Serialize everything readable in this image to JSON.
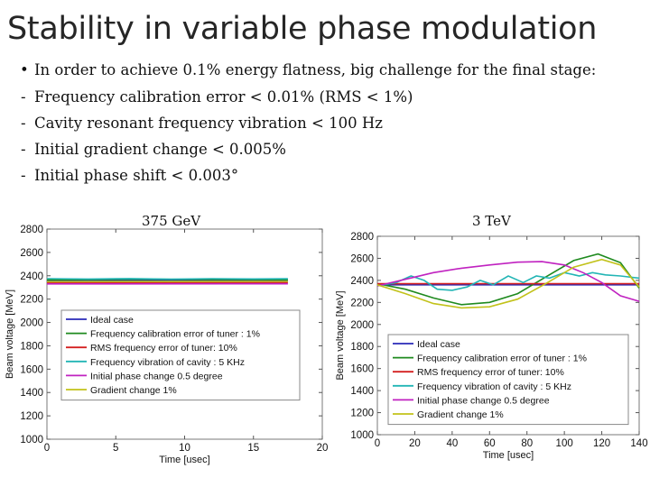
{
  "slide": {
    "title": "Stability in variable phase modulation",
    "bullet": "In order to achieve 0.1% energy flatness, big challenge for the final stage:",
    "items": [
      "Frequency calibration error < 0.01% (RMS < 1%)",
      "Cavity resonant frequency vibration < 100 Hz",
      "Initial gradient change < 0.005%",
      "Initial phase shift < 0.003°"
    ]
  },
  "legend_entries": [
    "Ideal case",
    "Frequency calibration error of tuner : 1%",
    "RMS frequency error of tuner: 10%",
    "Frequency vibration of cavity : 5 KHz",
    "Initial phase change 0.5 degree",
    "Gradient change 1%"
  ],
  "colors": [
    "#2a2ab8",
    "#1f8a1f",
    "#d42020",
    "#22b5b5",
    "#c022c0",
    "#c2c21a"
  ],
  "chart_data": [
    {
      "type": "line",
      "caption": "375 GeV",
      "xlabel": "Time [usec]",
      "ylabel": "Beam voltage [MeV]",
      "xlim": [
        0,
        20
      ],
      "ylim": [
        1000,
        2800
      ],
      "xticks": [
        0,
        5,
        10,
        15,
        20
      ],
      "yticks": [
        1000,
        1200,
        1400,
        1600,
        1800,
        2000,
        2200,
        2400,
        2600,
        2800
      ],
      "grid": false,
      "legend_position": "lower-left",
      "series": [
        {
          "name": "Ideal case",
          "x": [
            0,
            17.5
          ],
          "y": [
            2360,
            2360
          ]
        },
        {
          "name": "Frequency calibration error of tuner : 1%",
          "x": [
            0,
            4,
            8,
            12,
            17.5
          ],
          "y": [
            2365,
            2368,
            2370,
            2368,
            2366
          ]
        },
        {
          "name": "RMS frequency error of tuner: 10%",
          "x": [
            0,
            17.5
          ],
          "y": [
            2340,
            2342
          ]
        },
        {
          "name": "Frequency vibration of cavity : 5 KHz",
          "x": [
            0,
            3,
            6,
            9,
            12,
            15,
            17.5
          ],
          "y": [
            2375,
            2372,
            2376,
            2371,
            2375,
            2373,
            2374
          ]
        },
        {
          "name": "Initial phase change 0.5 degree",
          "x": [
            0,
            17.5
          ],
          "y": [
            2330,
            2331
          ]
        },
        {
          "name": "Gradient change 1%",
          "x": [
            0,
            17.5
          ],
          "y": [
            2350,
            2352
          ]
        }
      ]
    },
    {
      "type": "line",
      "caption": "3 TeV",
      "xlabel": "Time [usec]",
      "ylabel": "Beam voltage [MeV]",
      "xlim": [
        0,
        140
      ],
      "ylim": [
        1000,
        2800
      ],
      "xticks": [
        0,
        20,
        40,
        60,
        80,
        100,
        120,
        140
      ],
      "yticks": [
        1000,
        1200,
        1400,
        1600,
        1800,
        2000,
        2200,
        2400,
        2600,
        2800
      ],
      "grid": false,
      "legend_position": "lower-left",
      "series": [
        {
          "name": "Ideal case",
          "x": [
            0,
            140
          ],
          "y": [
            2360,
            2360
          ]
        },
        {
          "name": "Frequency calibration error of tuner : 1%",
          "x": [
            0,
            15,
            30,
            45,
            60,
            75,
            90,
            105,
            118,
            130,
            140
          ],
          "y": [
            2370,
            2320,
            2240,
            2180,
            2200,
            2280,
            2430,
            2580,
            2640,
            2560,
            2330
          ]
        },
        {
          "name": "RMS frequency error of tuner: 10%",
          "x": [
            0,
            140
          ],
          "y": [
            2370,
            2370
          ]
        },
        {
          "name": "Frequency vibration of cavity : 5 KHz",
          "x": [
            0,
            10,
            18,
            25,
            32,
            40,
            48,
            55,
            62,
            70,
            78,
            85,
            92,
            100,
            108,
            115,
            122,
            130,
            140
          ],
          "y": [
            2350,
            2380,
            2440,
            2400,
            2320,
            2310,
            2340,
            2400,
            2360,
            2440,
            2380,
            2440,
            2420,
            2470,
            2440,
            2470,
            2450,
            2440,
            2420
          ]
        },
        {
          "name": "Initial phase change 0.5 degree",
          "x": [
            0,
            15,
            30,
            45,
            60,
            75,
            88,
            100,
            110,
            120,
            130,
            140
          ],
          "y": [
            2350,
            2410,
            2470,
            2510,
            2540,
            2565,
            2570,
            2540,
            2470,
            2380,
            2260,
            2210
          ]
        },
        {
          "name": "Gradient change 1%",
          "x": [
            0,
            15,
            30,
            45,
            60,
            75,
            90,
            105,
            120,
            130,
            140
          ],
          "y": [
            2360,
            2280,
            2190,
            2150,
            2160,
            2230,
            2370,
            2520,
            2590,
            2540,
            2340
          ]
        }
      ]
    }
  ]
}
